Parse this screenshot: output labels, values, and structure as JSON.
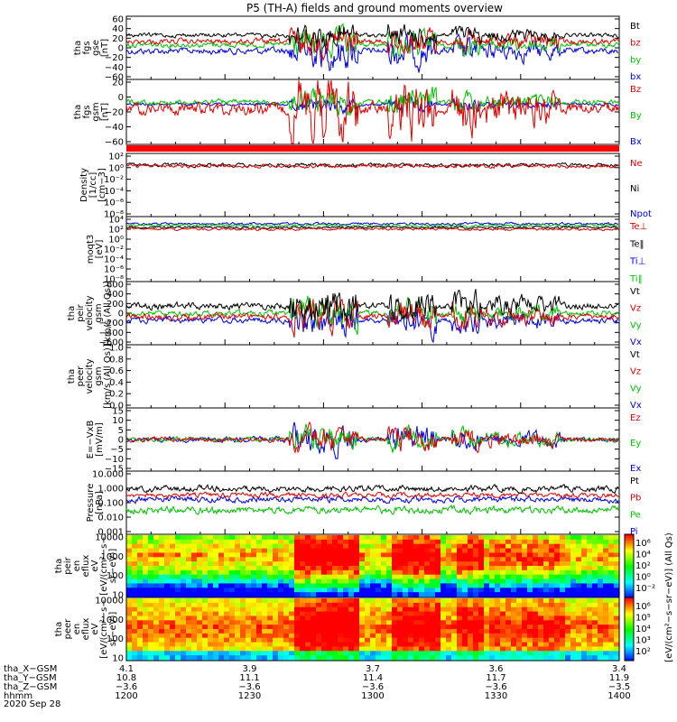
{
  "title": "P5 (TH-A) fields and ground moments overview",
  "colors": {
    "black": "#000000",
    "red": "#e00000",
    "green": "#00c000",
    "blue": "#0000e0"
  },
  "chart_data": [
    {
      "type": "line",
      "panel": "fgs_gse",
      "ylabel": [
        "tha",
        "fgs",
        "gse",
        "[nT]"
      ],
      "yrange": [
        -60,
        60
      ],
      "yticks": [
        "60",
        "40",
        "20",
        "0",
        "−20",
        "−40",
        "−60"
      ],
      "legend": [
        {
          "name": "Bt",
          "color": "black"
        },
        {
          "name": "bz",
          "color": "red"
        },
        {
          "name": "by",
          "color": "green"
        },
        {
          "name": "bx",
          "color": "blue"
        }
      ]
    },
    {
      "type": "line",
      "panel": "fgs_gsm",
      "ylabel": [
        "tha",
        "fgs",
        "gsm",
        "[nT]"
      ],
      "yrange": [
        -70,
        30
      ],
      "yticks": [
        "20",
        "0",
        "−20",
        "−40",
        "−60"
      ],
      "legend": [
        {
          "name": "Bz",
          "color": "red"
        },
        {
          "name": "By",
          "color": "green"
        },
        {
          "name": "Bx",
          "color": "blue"
        }
      ]
    },
    {
      "type": "line",
      "panel": "density",
      "ylabel": [
        "Density",
        "[1/cc]",
        "[cm−3]"
      ],
      "scale": "log",
      "yticks": [
        "10²",
        "10⁰",
        "10⁻²",
        "10⁻⁴",
        "10⁻⁶",
        "10⁻⁸"
      ],
      "legend": [
        {
          "name": "Ne",
          "color": "red"
        },
        {
          "name": "Ni",
          "color": "black"
        },
        {
          "name": "Npot",
          "color": "blue"
        }
      ]
    },
    {
      "type": "line",
      "panel": "temperature",
      "ylabel": [
        "moqt3",
        "[eV]"
      ],
      "scale": "log",
      "yticks": [
        "10⁴",
        "10²",
        "10⁰",
        "10⁻²",
        "10⁻⁴",
        "10⁻⁶",
        "10⁻⁸"
      ],
      "legend": [
        {
          "name": "Te⊥",
          "color": "red"
        },
        {
          "name": "Te‖",
          "color": "black"
        },
        {
          "name": "Ti⊥",
          "color": "blue"
        },
        {
          "name": "Ti‖",
          "color": "green"
        }
      ]
    },
    {
      "type": "line",
      "panel": "peir_velocity",
      "ylabel": [
        "tha",
        "peir",
        "velocity",
        "gsm",
        "[km/s (All Qs)]"
      ],
      "yrange": [
        -600,
        600
      ],
      "yticks": [
        "600",
        "400",
        "200",
        "0",
        "−200",
        "−400",
        "−600"
      ],
      "legend": [
        {
          "name": "Vt",
          "color": "black"
        },
        {
          "name": "Vz",
          "color": "red"
        },
        {
          "name": "Vy",
          "color": "green"
        },
        {
          "name": "Vx",
          "color": "blue"
        }
      ]
    },
    {
      "type": "line",
      "panel": "peer_velocity",
      "ylabel": [
        "tha",
        "peer",
        "velocity",
        "gsm",
        "[km/s (All Qs)]"
      ],
      "yrange": [
        0,
        1
      ],
      "yticks": [
        "1.0",
        "0.8",
        "0.6",
        "0.4",
        "0.2",
        "0.0"
      ],
      "legend": [
        {
          "name": "Vt",
          "color": "black"
        },
        {
          "name": "Vz",
          "color": "red"
        },
        {
          "name": "Vy",
          "color": "green"
        },
        {
          "name": "Vx",
          "color": "blue"
        }
      ]
    },
    {
      "type": "line",
      "panel": "efield",
      "ylabel": [
        "E=−VxB",
        "[mV/m]"
      ],
      "yrange": [
        -15,
        15
      ],
      "yticks": [
        "15",
        "10",
        "5",
        "0",
        "−5",
        "−10",
        "−15"
      ],
      "legend": [
        {
          "name": "Ez",
          "color": "red"
        },
        {
          "name": "Ey",
          "color": "green"
        },
        {
          "name": "Ex",
          "color": "blue"
        }
      ]
    },
    {
      "type": "line",
      "panel": "pressure",
      "ylabel": [
        "Pressure",
        "[nPa]"
      ],
      "scale": "log",
      "yticks": [
        "10.000",
        "1.000",
        "0.100",
        "0.010",
        "0.001"
      ],
      "legend": [
        {
          "name": "Pt",
          "color": "black"
        },
        {
          "name": "Pb",
          "color": "red"
        },
        {
          "name": "Pe",
          "color": "green"
        },
        {
          "name": "Pi",
          "color": "blue"
        }
      ]
    },
    {
      "type": "heatmap",
      "panel": "peir_en_eflux",
      "ylabel": [
        "tha",
        "peir",
        "en",
        "eflux",
        "eV",
        "[eV/(cm²−s−",
        "sr−eV)]"
      ],
      "scale": "log",
      "yticks": [
        "10000",
        "1000",
        "100",
        "10"
      ]
    },
    {
      "type": "heatmap",
      "panel": "peer_en_eflux",
      "ylabel": [
        "tha",
        "peer",
        "en",
        "eflux",
        "eV",
        "[eV/(cm²−s−",
        "sr−eV)]"
      ],
      "scale": "log",
      "yticks": [
        "10000",
        "1000",
        "100",
        "10"
      ]
    }
  ],
  "colorbar": {
    "label": "[eV/(cm²−s−sr−eV)] (All Qs)",
    "upper_ticks": [
      "10⁶",
      "10⁴",
      "10²",
      "10⁰",
      "10⁻²"
    ],
    "lower_ticks": [
      "10⁶",
      "10⁵",
      "10⁴",
      "10³",
      "10²"
    ]
  },
  "xaxis": {
    "row_labels": [
      "tha_X−GSM",
      "tha_Y−GSM",
      "tha_Z−GSM",
      "hhmm",
      "2020 Sep 28"
    ],
    "columns": [
      {
        "x": "4.1",
        "y": "10.8",
        "z": "−3.6",
        "t": "1200"
      },
      {
        "x": "3.9",
        "y": "11.1",
        "z": "−3.6",
        "t": "1230"
      },
      {
        "x": "3.7",
        "y": "11.4",
        "z": "−3.6",
        "t": "1300"
      },
      {
        "x": "3.6",
        "y": "11.7",
        "z": "−3.6",
        "t": "1330"
      },
      {
        "x": "3.4",
        "y": "11.9",
        "z": "−3.5",
        "t": "1400"
      }
    ]
  }
}
